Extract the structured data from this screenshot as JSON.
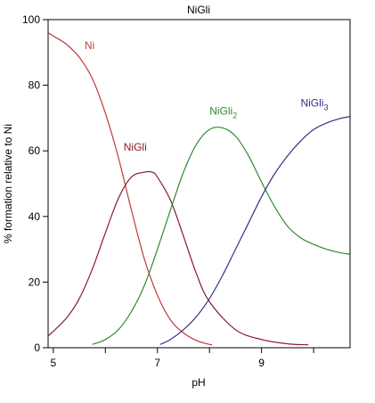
{
  "chart_data": {
    "type": "line",
    "title": "NiGli",
    "xlabel": "pH",
    "ylabel": "% formation relative to Ni",
    "xlim": [
      4.9,
      10.7
    ],
    "ylim": [
      0,
      100
    ],
    "x_ticks": [
      5,
      7,
      9
    ],
    "x_minor_ticks": [
      6,
      8,
      10
    ],
    "y_ticks": [
      0,
      20,
      40,
      60,
      80,
      100
    ],
    "grid": false,
    "legend": "inline labels near curves",
    "series": [
      {
        "name": "Ni",
        "label_main": "Ni",
        "label_sub": "",
        "color": "#c0393b",
        "label_at": [
          5.6,
          91
        ],
        "x": [
          4.9,
          5.0,
          5.25,
          5.5,
          5.75,
          6.0,
          6.25,
          6.5,
          6.75,
          7.0,
          7.25,
          7.5,
          7.75,
          8.0,
          8.05
        ],
        "y": [
          96,
          95,
          92.5,
          88.5,
          82,
          71.5,
          58,
          42,
          27,
          16,
          8.5,
          4.5,
          2.2,
          1.0,
          0.9
        ]
      },
      {
        "name": "NiGli",
        "label_main": "NiGli",
        "label_sub": "",
        "color": "#8b1a2c",
        "label_at": [
          6.35,
          60
        ],
        "x": [
          4.9,
          5.25,
          5.5,
          5.75,
          6.0,
          6.25,
          6.5,
          6.75,
          6.9,
          7.0,
          7.25,
          7.5,
          7.75,
          8.0,
          8.5,
          9.0,
          9.5,
          9.9
        ],
        "y": [
          3.5,
          9,
          15,
          24,
          35,
          45.5,
          52,
          53.5,
          53.5,
          52,
          45,
          34,
          22.5,
          14,
          5.5,
          2.5,
          1.2,
          0.9
        ]
      },
      {
        "name": "NiGli2",
        "label_main": "NiGli",
        "label_sub": "2",
        "color": "#2e8b2e",
        "label_at": [
          8.0,
          71
        ],
        "x": [
          5.75,
          6.0,
          6.25,
          6.5,
          6.75,
          7.0,
          7.25,
          7.5,
          7.75,
          8.0,
          8.25,
          8.5,
          8.75,
          9.0,
          9.25,
          9.5,
          9.75,
          10.0,
          10.25,
          10.5,
          10.7
        ],
        "y": [
          1,
          2.5,
          5.5,
          11,
          19,
          30,
          42,
          53.5,
          62,
          66.5,
          67,
          64.5,
          58.5,
          50.5,
          43,
          37,
          33.5,
          31.5,
          30,
          29,
          28.5
        ]
      },
      {
        "name": "NiGli3",
        "label_main": "NiGli",
        "label_sub": "3",
        "color": "#3a2d8c",
        "label_at": [
          9.75,
          73.5
        ],
        "x": [
          7.05,
          7.25,
          7.5,
          7.75,
          8.0,
          8.25,
          8.5,
          8.75,
          9.0,
          9.25,
          9.5,
          9.75,
          10.0,
          10.25,
          10.5,
          10.7
        ],
        "y": [
          1,
          2.5,
          5.5,
          9.5,
          15,
          22,
          30,
          38,
          46,
          53,
          58.5,
          63,
          66.5,
          68.5,
          69.8,
          70.5
        ]
      }
    ]
  }
}
